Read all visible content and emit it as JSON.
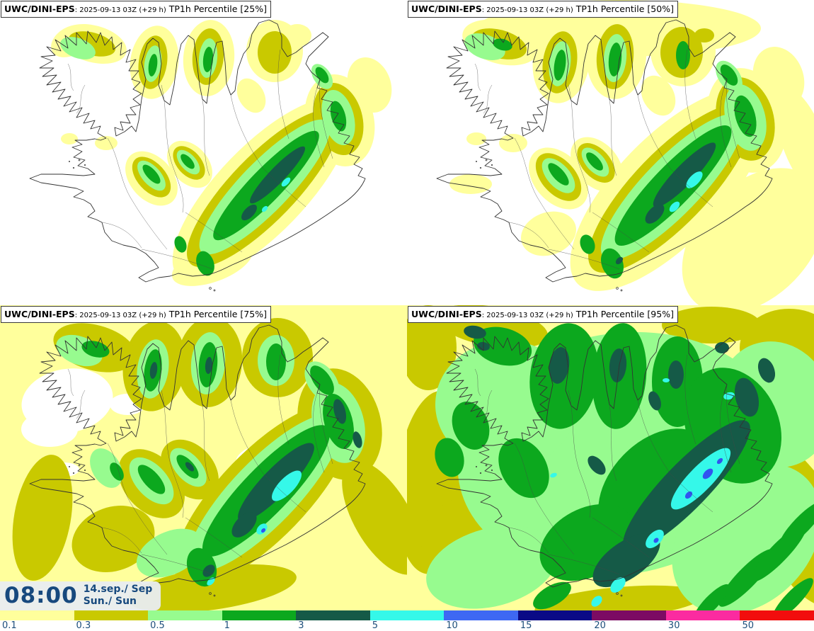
{
  "panels": [
    {
      "model": "UWC/DINI-EPS",
      "run": ": 2025-09-13 03Z (+29 h)",
      "product": "TP1h Percentile [25%]",
      "percentile": "25%"
    },
    {
      "model": "UWC/DINI-EPS",
      "run": ": 2025-09-13 03Z (+29 h)",
      "product": "TP1h Percentile [50%]",
      "percentile": "50%"
    },
    {
      "model": "UWC/DINI-EPS",
      "run": ": 2025-09-13 03Z (+29 h)",
      "product": "TP1h Percentile [75%]",
      "percentile": "75%"
    },
    {
      "model": "UWC/DINI-EPS",
      "run": ": 2025-09-13 03Z (+29 h)",
      "product": "TP1h Percentile [95%]",
      "percentile": "95%"
    }
  ],
  "time_overlay": {
    "clock": "08:00",
    "date": "14.sep./ Sep",
    "day": "Sun./ Sun"
  },
  "legend": {
    "label_color": "#1D4E7B",
    "items": [
      {
        "value": "0.1",
        "color": "#FFFF9C"
      },
      {
        "value": "0.3",
        "color": "#C9C900"
      },
      {
        "value": "0.5",
        "color": "#97FB8F"
      },
      {
        "value": "1",
        "color": "#0CA81E"
      },
      {
        "value": "3",
        "color": "#155A47"
      },
      {
        "value": "5",
        "color": "#35F8E9"
      },
      {
        "value": "10",
        "color": "#3E68F3"
      },
      {
        "value": "15",
        "color": "#0A0A86"
      },
      {
        "value": "20",
        "color": "#7C0B63"
      },
      {
        "value": "30",
        "color": "#FB2BA0"
      },
      {
        "value": "50",
        "color": "#F20D0D"
      }
    ]
  }
}
